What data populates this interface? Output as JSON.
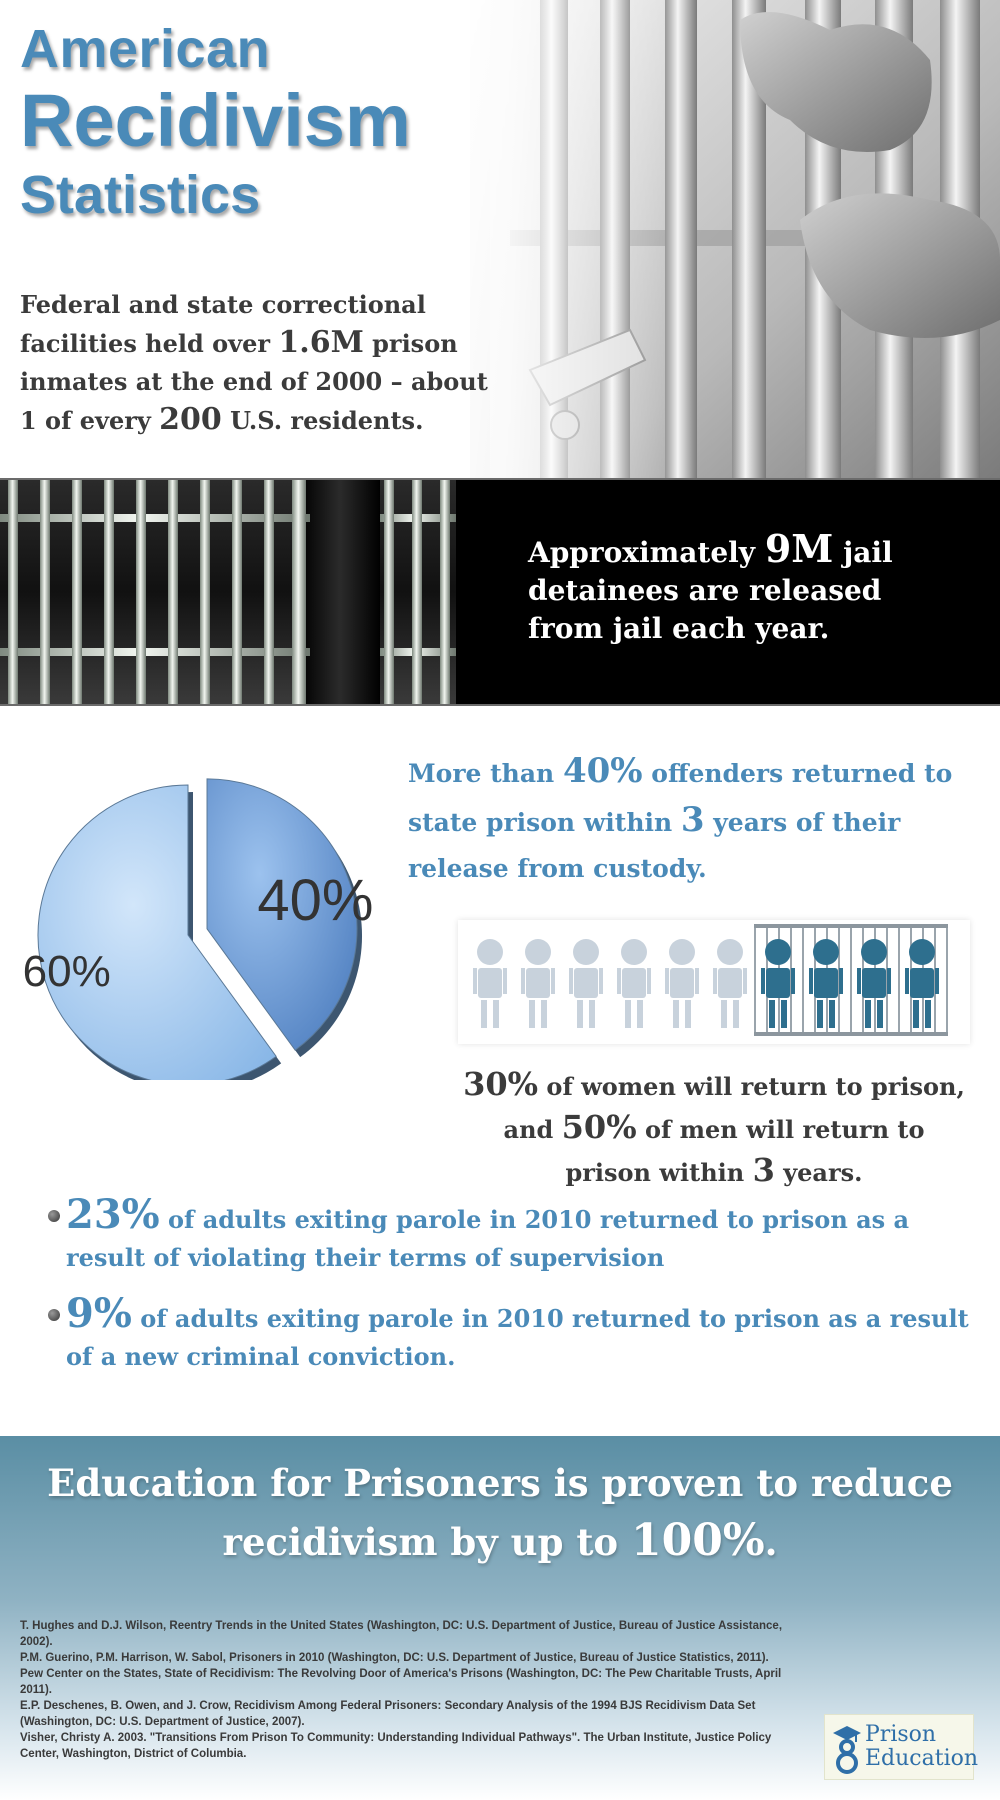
{
  "header": {
    "title_line1": "American",
    "title_line2": "Recidivism",
    "title_line3": "Statistics",
    "intro_part1": "Federal and state correctional facilities held over ",
    "intro_num1": "1.6M",
    "intro_part2": " prison inmates at the end of 2000 – about 1 of every ",
    "intro_num2": "200",
    "intro_part3": " U.S. residents."
  },
  "band": {
    "text_part1": "Approximately ",
    "text_num": "9M",
    "text_part2": " jail detainees are released from jail each year."
  },
  "pie": {
    "slices": [
      {
        "label": "40%",
        "value": 40,
        "color": "#6f9fd8"
      },
      {
        "label": "60%",
        "value": 60,
        "color": "#a8cdf2"
      }
    ]
  },
  "stat_40": {
    "part1": "More than ",
    "num1": "40%",
    "part2": " offenders returned to state prison within ",
    "num2": "3",
    "part3": " years of their release from custody."
  },
  "people": {
    "total": 10,
    "jailed": 4,
    "color_free": "#c8d2dc",
    "color_jailed": "#2e6f8e"
  },
  "stat_gender": {
    "num1": "30%",
    "part1": " of women will return to prison, and ",
    "num2": "50%",
    "part2": " of men will return to prison within ",
    "num3": "3",
    "part3": " years."
  },
  "bullets": [
    {
      "num": "23%",
      "text": " of adults exiting parole in 2010 returned to prison as a result of violating their terms of supervision"
    },
    {
      "num": "9%",
      "text": " of adults exiting parole in 2010 returned to prison as a result of a new criminal conviction."
    }
  ],
  "footer": {
    "msg_part1": "Education for Prisoners is proven to reduce recidivism by up to ",
    "msg_num": "100%",
    "msg_part2": ".",
    "references": [
      "T. Hughes and D.J. Wilson, Reentry Trends in the United States (Washington, DC: U.S. Department of Justice, Bureau of Justice Assistance, 2002).",
      "P.M. Guerino, P.M. Harrison, W. Sabol, Prisoners in 2010 (Washington, DC: U.S. Department of Justice, Bureau of Justice Statistics, 2011).",
      "Pew Center on the States, State of Recidivism: The Revolving Door of America's Prisons (Washington, DC: The Pew Charitable Trusts, April 2011).",
      "E.P. Deschenes, B. Owen, and J. Crow, Recidivism Among Federal Prisoners: Secondary Analysis of the 1994 BJS Recidivism Data Set (Washington, DC: U.S. Department of Justice, 2007).",
      "Visher, Christy A. 2003. \"Transitions From Prison To Community: Understanding Individual Pathways\". The Urban Institute, Justice Policy Center, Washington, District of Columbia."
    ],
    "logo_line1": "Prison",
    "logo_line2": "Education"
  }
}
